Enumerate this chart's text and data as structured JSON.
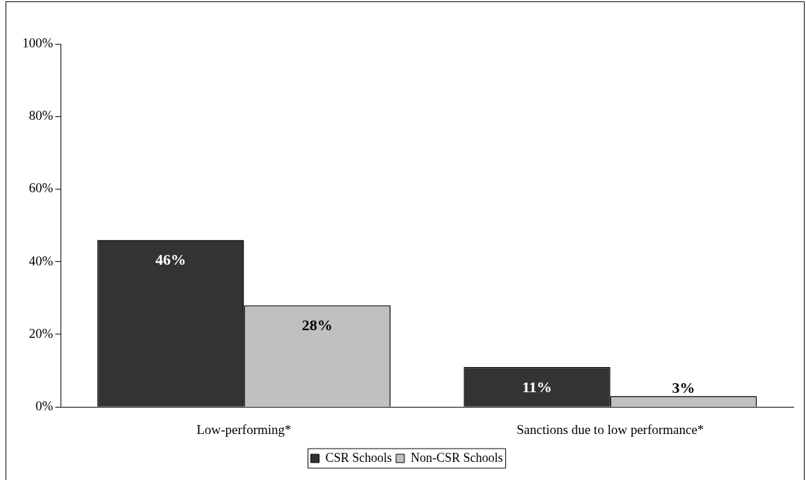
{
  "chart_data": {
    "type": "bar",
    "categories": [
      "Low-performing*",
      "Sanctions due to low performance*"
    ],
    "series": [
      {
        "name": "CSR Schools",
        "color": "#333333",
        "values": [
          46,
          11
        ],
        "value_labels": [
          "46%",
          "11%"
        ]
      },
      {
        "name": "Non-CSR Schools",
        "color": "#c0c0c0",
        "values": [
          28,
          3
        ],
        "value_labels": [
          "28%",
          "3%"
        ]
      }
    ],
    "ylim": [
      0,
      100
    ],
    "yticks": [
      {
        "value": 0,
        "label": "0%"
      },
      {
        "value": 20,
        "label": "20%"
      },
      {
        "value": 40,
        "label": "40%"
      },
      {
        "value": 60,
        "label": "60%"
      },
      {
        "value": 80,
        "label": "80%"
      },
      {
        "value": 100,
        "label": "100%"
      }
    ],
    "grid": false,
    "legend": "bottom"
  }
}
